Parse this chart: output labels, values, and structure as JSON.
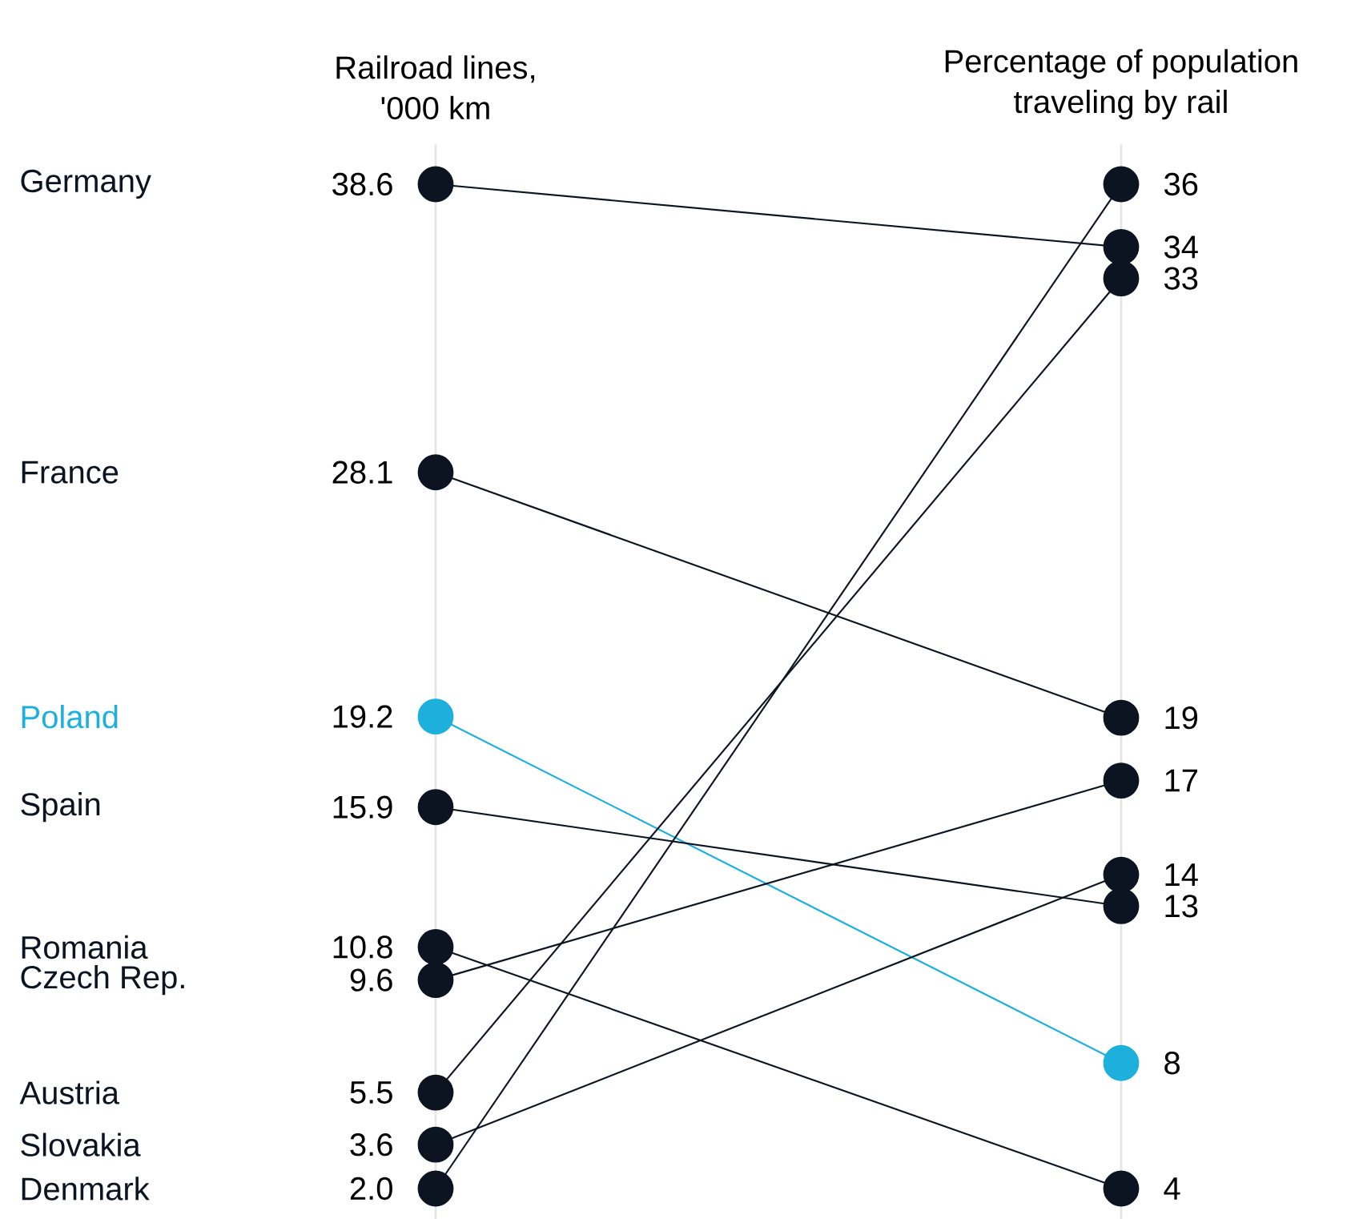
{
  "chart_data": {
    "type": "other",
    "categories": [
      "Railroad lines, '000 km",
      "Percentage of population traveling by rail"
    ],
    "data_labels": true,
    "series": [
      {
        "name": "Germany",
        "color": "#0b1420",
        "values": [
          38.6,
          34
        ]
      },
      {
        "name": "France",
        "color": "#0b1420",
        "values": [
          28.1,
          19
        ]
      },
      {
        "name": "Poland",
        "color": "#1eb0dc",
        "values": [
          19.2,
          8
        ]
      },
      {
        "name": "Spain",
        "color": "#0b1420",
        "values": [
          15.9,
          13
        ]
      },
      {
        "name": "Romania",
        "color": "#0b1420",
        "values": [
          10.8,
          4
        ]
      },
      {
        "name": "Czech Rep.",
        "color": "#0b1420",
        "values": [
          9.6,
          17
        ]
      },
      {
        "name": "Austria",
        "color": "#0b1420",
        "values": [
          5.5,
          33
        ]
      },
      {
        "name": "Slovakia",
        "color": "#0b1420",
        "values": [
          3.6,
          14
        ]
      },
      {
        "name": "Denmark",
        "color": "#0b1420",
        "values": [
          2.0,
          36
        ],
        "value_labels": [
          "2.0",
          "36"
        ]
      }
    ]
  }
}
